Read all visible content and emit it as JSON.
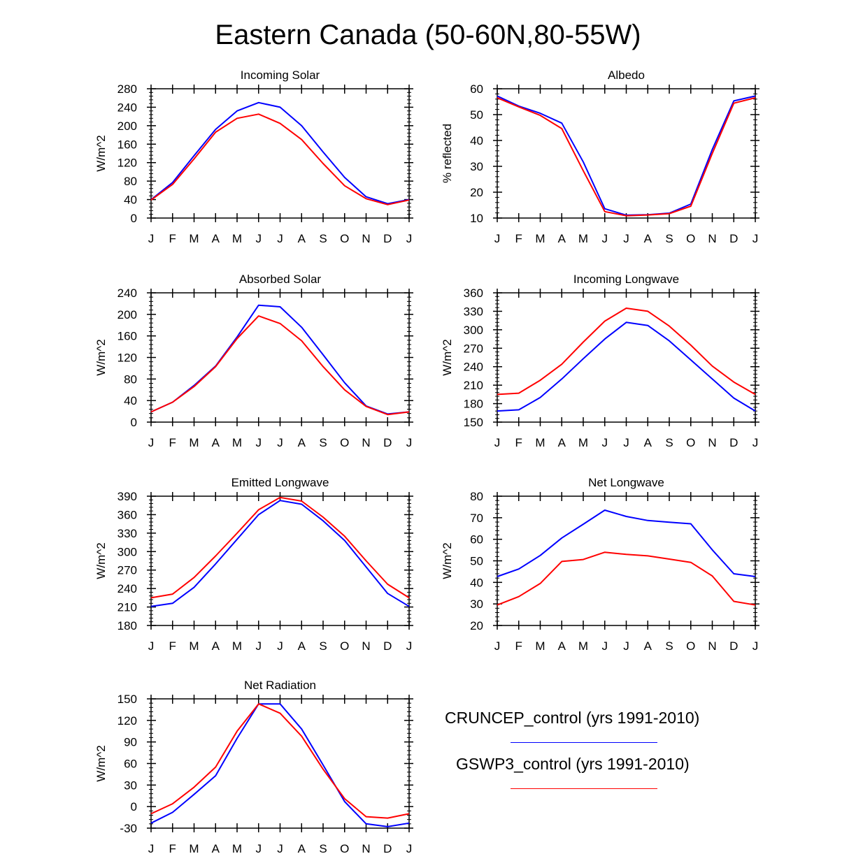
{
  "title": "Eastern Canada (50-60N,80-55W)",
  "colors": {
    "cruncep": "#0000ff",
    "gswp3": "#ff0000",
    "axis": "#000000"
  },
  "legend": {
    "cruncep_label": "CRUNCEP_control (yrs 1991-2010)",
    "gswp3_label": "GSWP3_control (yrs 1991-2010)"
  },
  "chart_data": [
    {
      "type": "line",
      "title": "Incoming Solar",
      "ylabel": "W/m^2",
      "categories": [
        "J",
        "F",
        "M",
        "A",
        "M",
        "J",
        "J",
        "A",
        "S",
        "O",
        "N",
        "D",
        "J"
      ],
      "ylim": [
        0,
        280
      ],
      "yticks": [
        0,
        40,
        80,
        120,
        160,
        200,
        240,
        280
      ],
      "series": [
        {
          "name": "CRUNCEP_control (yrs 1991-2010)",
          "color": "#0000ff",
          "values": [
            40,
            77,
            135,
            192,
            232,
            250,
            240,
            200,
            143,
            88,
            46,
            31,
            40
          ]
        },
        {
          "name": "GSWP3_control (yrs 1991-2010)",
          "color": "#ff0000",
          "values": [
            39,
            73,
            128,
            186,
            216,
            225,
            205,
            170,
            118,
            70,
            42,
            29,
            39
          ]
        }
      ]
    },
    {
      "type": "line",
      "title": "Albedo",
      "ylabel": "% reflected",
      "categories": [
        "J",
        "F",
        "M",
        "A",
        "M",
        "J",
        "J",
        "A",
        "S",
        "O",
        "N",
        "D",
        "J"
      ],
      "ylim": [
        10,
        60
      ],
      "yticks": [
        10,
        20,
        30,
        40,
        50,
        60
      ],
      "series": [
        {
          "name": "CRUNCEP_control (yrs 1991-2010)",
          "color": "#0000ff",
          "values": [
            57.2,
            53.3,
            50.5,
            46.7,
            31.7,
            13.6,
            11.1,
            11.3,
            11.9,
            15.4,
            36.5,
            55.3,
            57.2
          ]
        },
        {
          "name": "GSWP3_control (yrs 1991-2010)",
          "color": "#ff0000",
          "values": [
            56.5,
            53,
            49.7,
            44.6,
            28.3,
            12.5,
            10.9,
            11.2,
            11.7,
            14.6,
            35,
            54.4,
            56.5
          ]
        }
      ]
    },
    {
      "type": "line",
      "title": "Absorbed Solar",
      "ylabel": "W/m^2",
      "categories": [
        "J",
        "F",
        "M",
        "A",
        "M",
        "J",
        "J",
        "A",
        "S",
        "O",
        "N",
        "D",
        "J"
      ],
      "ylim": [
        0,
        240
      ],
      "yticks": [
        0,
        40,
        80,
        120,
        160,
        200,
        240
      ],
      "series": [
        {
          "name": "CRUNCEP_control (yrs 1991-2010)",
          "color": "#0000ff",
          "values": [
            19,
            37,
            68,
            104,
            158,
            217,
            214,
            176,
            125,
            73,
            30,
            15,
            19
          ]
        },
        {
          "name": "GSWP3_control (yrs 1991-2010)",
          "color": "#ff0000",
          "values": [
            19,
            37,
            66,
            103,
            155,
            197,
            183,
            151,
            103,
            60,
            29,
            14,
            19
          ]
        }
      ]
    },
    {
      "type": "line",
      "title": "Incoming Longwave",
      "ylabel": "W/m^2",
      "categories": [
        "J",
        "F",
        "M",
        "A",
        "M",
        "J",
        "J",
        "A",
        "S",
        "O",
        "N",
        "D",
        "J"
      ],
      "ylim": [
        150,
        360
      ],
      "yticks": [
        150,
        180,
        210,
        240,
        270,
        300,
        330,
        360
      ],
      "series": [
        {
          "name": "CRUNCEP_control (yrs 1991-2010)",
          "color": "#0000ff",
          "values": [
            168,
            170,
            190,
            220,
            253,
            285,
            312,
            307,
            282,
            251,
            220,
            189,
            168
          ]
        },
        {
          "name": "GSWP3_control (yrs 1991-2010)",
          "color": "#ff0000",
          "values": [
            195,
            197,
            218,
            244,
            280,
            314,
            335,
            330,
            306,
            275,
            241,
            215,
            195
          ]
        }
      ]
    },
    {
      "type": "line",
      "title": "Emitted Longwave",
      "ylabel": "W/m^2",
      "categories": [
        "J",
        "F",
        "M",
        "A",
        "M",
        "J",
        "J",
        "A",
        "S",
        "O",
        "N",
        "D",
        "J"
      ],
      "ylim": [
        180,
        390
      ],
      "yticks": [
        180,
        210,
        240,
        270,
        300,
        330,
        360,
        390
      ],
      "series": [
        {
          "name": "CRUNCEP_control (yrs 1991-2010)",
          "color": "#0000ff",
          "values": [
            211,
            216,
            242,
            280,
            320,
            360,
            383,
            377,
            350,
            318,
            275,
            232,
            211
          ]
        },
        {
          "name": "GSWP3_control (yrs 1991-2010)",
          "color": "#ff0000",
          "values": [
            225,
            231,
            258,
            293,
            330,
            368,
            388,
            382,
            356,
            325,
            285,
            247,
            225
          ]
        }
      ]
    },
    {
      "type": "line",
      "title": "Net Longwave",
      "ylabel": "W/m^2",
      "categories": [
        "J",
        "F",
        "M",
        "A",
        "M",
        "J",
        "J",
        "A",
        "S",
        "O",
        "N",
        "D",
        "J"
      ],
      "ylim": [
        20,
        80
      ],
      "yticks": [
        20,
        30,
        40,
        50,
        60,
        70,
        80
      ],
      "series": [
        {
          "name": "CRUNCEP_control (yrs 1991-2010)",
          "color": "#0000ff",
          "values": [
            42.7,
            46.2,
            52.5,
            60.6,
            67.0,
            73.5,
            70.6,
            68.7,
            67.9,
            67.2,
            55.1,
            44.0,
            42.7
          ]
        },
        {
          "name": "GSWP3_control (yrs 1991-2010)",
          "color": "#ff0000",
          "values": [
            29.5,
            33.4,
            39.5,
            49.7,
            50.6,
            54.0,
            53.0,
            52.3,
            50.8,
            49.3,
            43.0,
            31.2,
            29.5
          ]
        }
      ]
    },
    {
      "type": "line",
      "title": "Net Radiation",
      "ylabel": "W/m^2",
      "categories": [
        "J",
        "F",
        "M",
        "A",
        "M",
        "J",
        "J",
        "A",
        "S",
        "O",
        "N",
        "D",
        "J"
      ],
      "ylim": [
        -30,
        150
      ],
      "yticks": [
        -30,
        0,
        30,
        60,
        90,
        120,
        150
      ],
      "series": [
        {
          "name": "CRUNCEP_control (yrs 1991-2010)",
          "color": "#0000ff",
          "values": [
            -23,
            -8,
            17,
            43,
            95,
            143,
            143,
            108,
            58,
            7,
            -24,
            -28,
            -23
          ]
        },
        {
          "name": "GSWP3_control (yrs 1991-2010)",
          "color": "#ff0000",
          "values": [
            -10,
            4,
            27,
            55,
            105,
            143,
            130,
            98,
            52,
            11,
            -14,
            -16,
            -10
          ]
        }
      ]
    }
  ]
}
